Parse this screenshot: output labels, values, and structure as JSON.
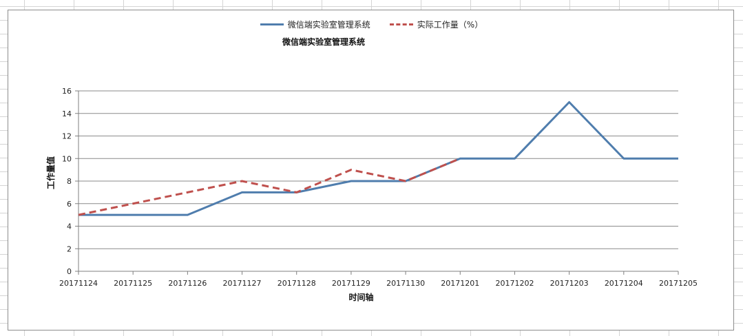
{
  "chart_data": {
    "type": "line",
    "title": "微信端实验室管理系统",
    "xlabel": "时间轴",
    "ylabel": "工作量值",
    "categories": [
      "20171124",
      "20171125",
      "20171126",
      "20171127",
      "20171128",
      "20171129",
      "20171130",
      "20171201",
      "20171202",
      "20171203",
      "20171204",
      "20171205"
    ],
    "series": [
      {
        "name": "微信端实验室管理系统",
        "style": "solid",
        "color": "#4f7dad",
        "values": [
          5,
          5,
          5,
          7,
          7,
          8,
          8,
          10,
          10,
          15,
          10,
          10
        ]
      },
      {
        "name": "实际工作量（%）",
        "style": "dashed",
        "color": "#bf504d",
        "values": [
          5,
          6,
          7,
          8,
          7,
          9,
          8,
          10,
          null,
          null,
          null,
          null
        ]
      }
    ],
    "ylim": [
      0,
      16
    ],
    "yticks": [
      0,
      2,
      4,
      6,
      8,
      10,
      12,
      14,
      16
    ],
    "grid": true,
    "legend_position": "top"
  }
}
